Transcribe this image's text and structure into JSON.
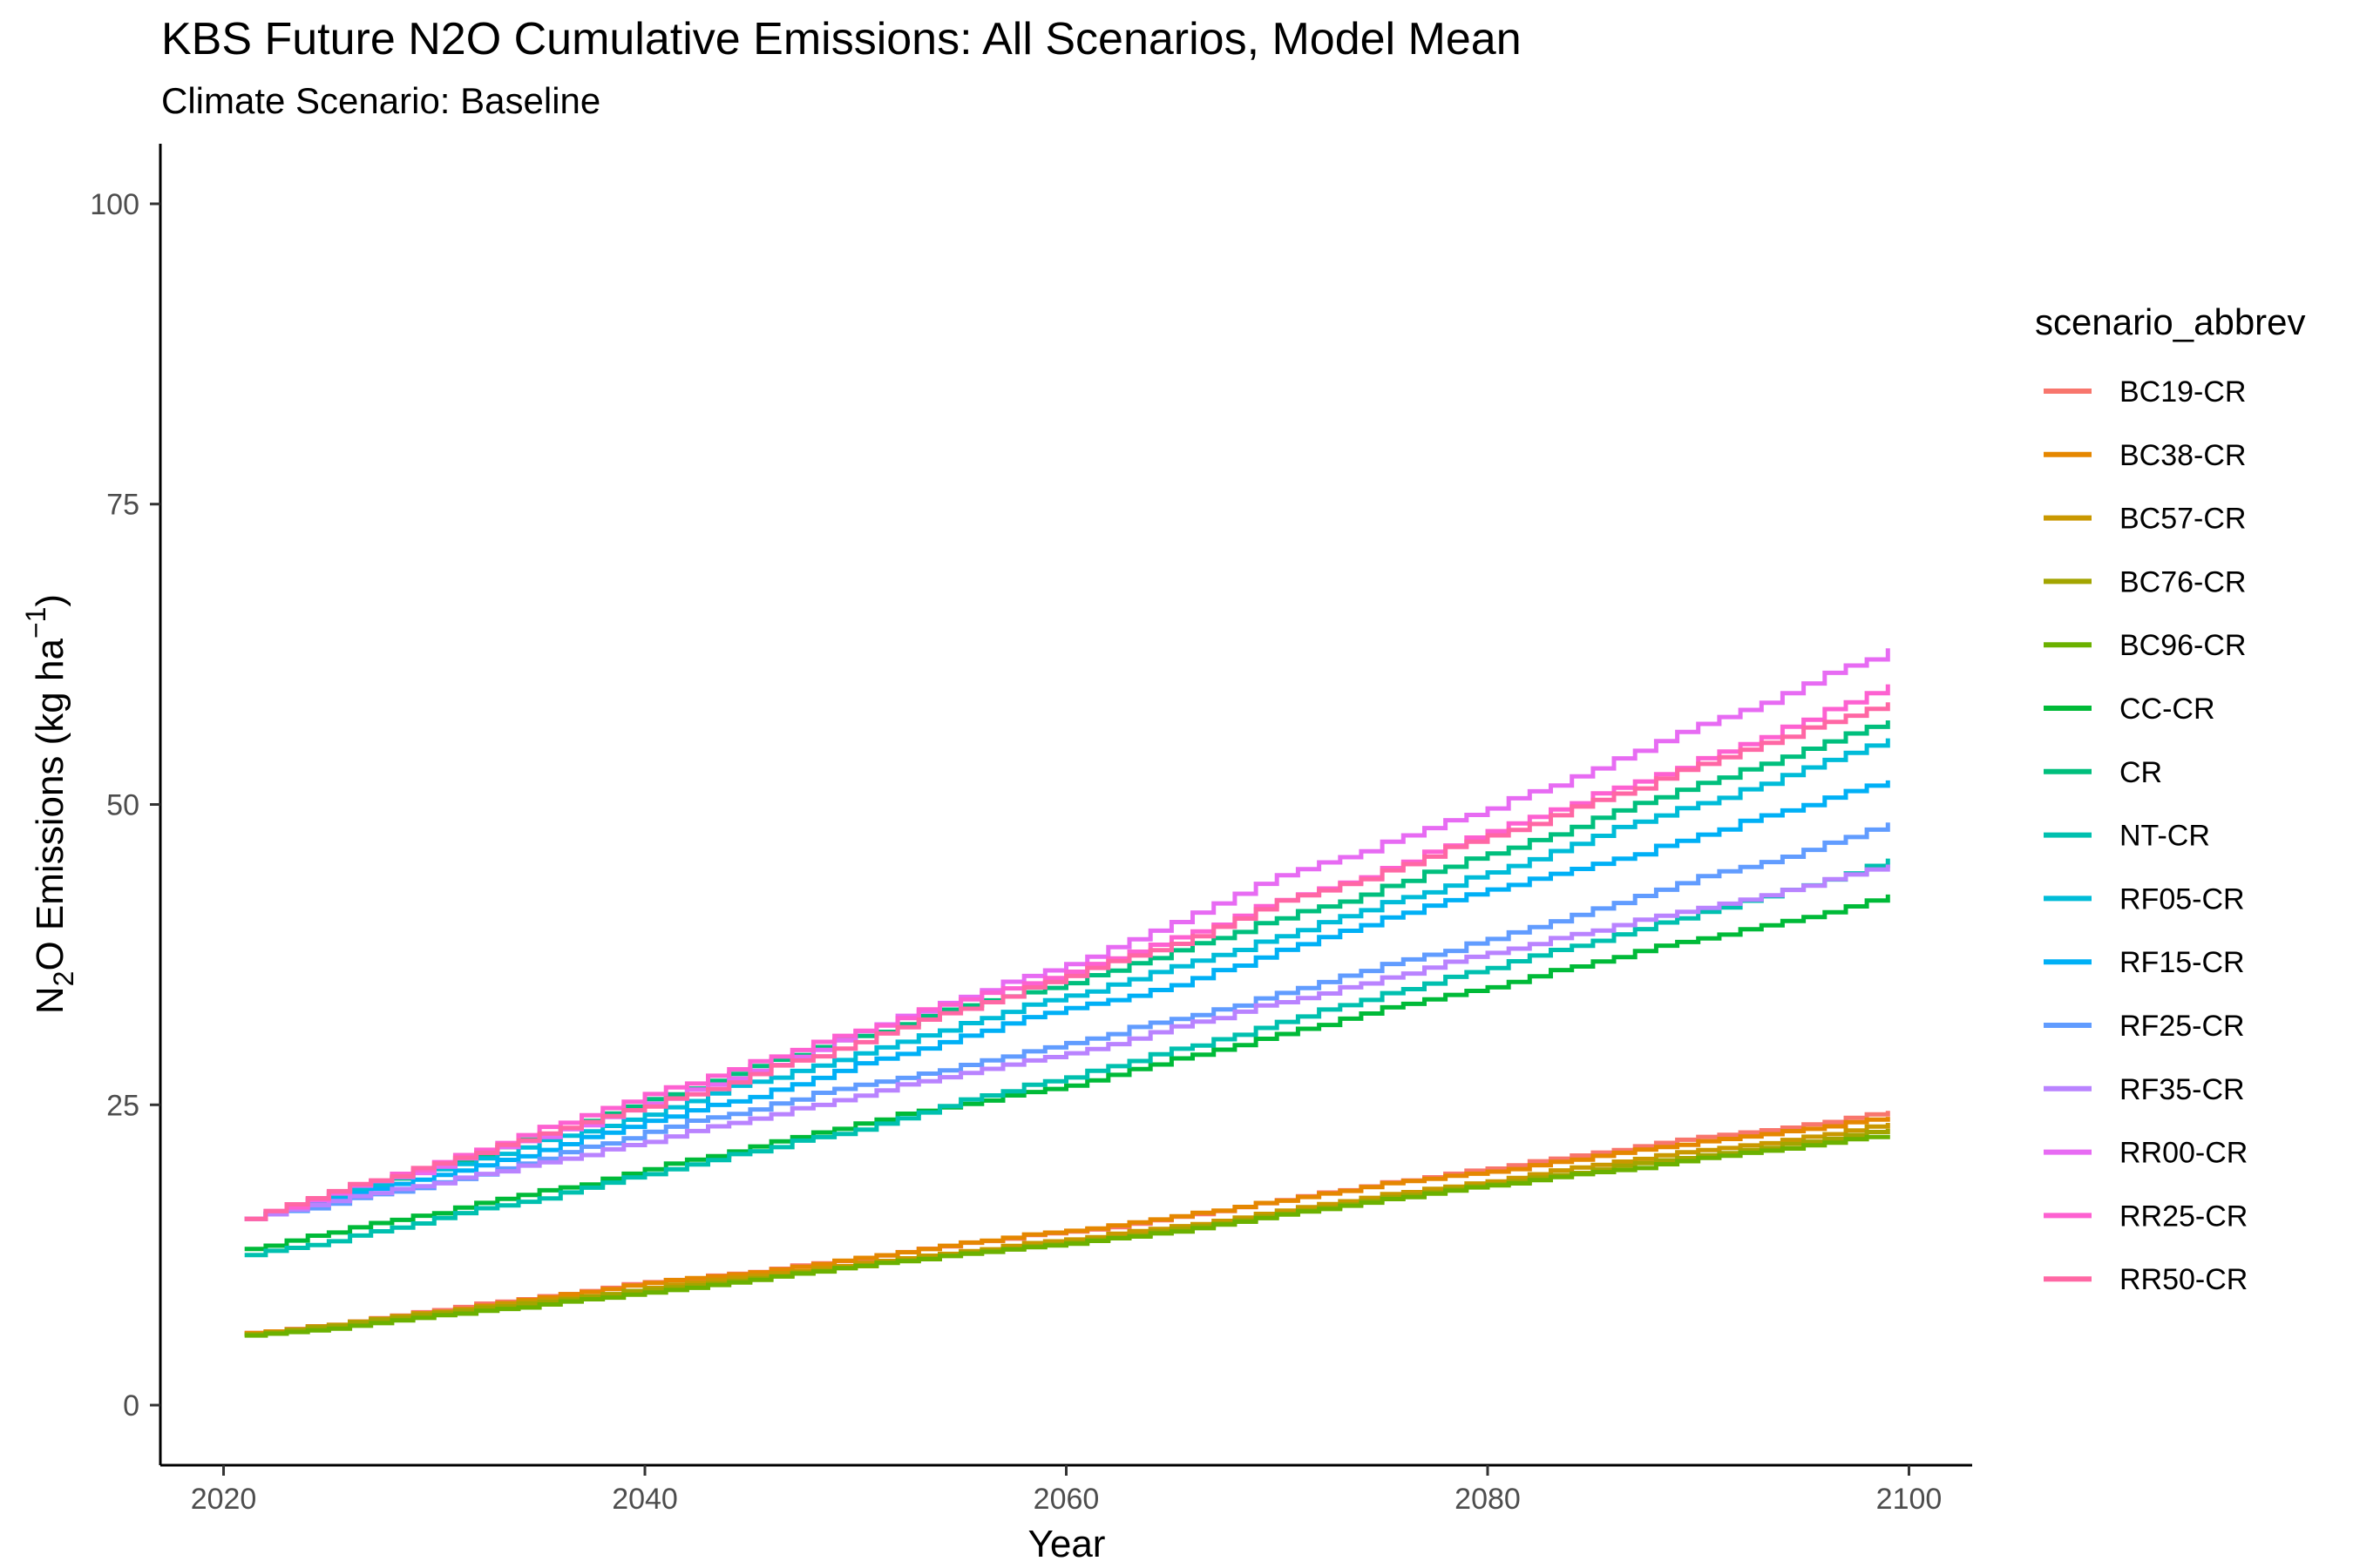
{
  "chart_data": {
    "type": "line",
    "title": "KBS  Future N2O Cumulative Emissions: All Scenarios, Model Mean",
    "subtitle": "Climate Scenario: Baseline",
    "xlabel": "Year",
    "ylabel": {
      "prefix": "N",
      "sub": "2",
      "middle": "O Emissions (kg ha",
      "sup": "−1",
      "suffix": ")"
    },
    "xlim": [
      2017,
      2103
    ],
    "ylim": [
      -5,
      105
    ],
    "x_ticks": [
      2020,
      2040,
      2060,
      2080,
      2100
    ],
    "y_ticks": [
      0,
      25,
      50,
      75,
      100
    ],
    "grid": false,
    "step": true,
    "legend": {
      "title": "scenario_abbrev",
      "position": "right"
    },
    "x_start": 2021,
    "x_end": 2099,
    "series": [
      {
        "name": "BC19-CR",
        "color": "#F8766D",
        "start": 6.0,
        "end": 24.5
      },
      {
        "name": "BC38-CR",
        "color": "#E58700",
        "start": 6.0,
        "end": 24.0
      },
      {
        "name": "BC57-CR",
        "color": "#C99800",
        "start": 5.9,
        "end": 23.5
      },
      {
        "name": "BC76-CR",
        "color": "#A3A500",
        "start": 5.9,
        "end": 23.0
      },
      {
        "name": "BC96-CR",
        "color": "#6BB100",
        "start": 5.8,
        "end": 22.5
      },
      {
        "name": "CC-CR",
        "color": "#00BA38",
        "start": 13.0,
        "end": 42.5
      },
      {
        "name": "CR",
        "color": "#00BF7D",
        "start": 15.5,
        "end": 57.0
      },
      {
        "name": "NT-CR",
        "color": "#00C0AF",
        "start": 12.5,
        "end": 45.5
      },
      {
        "name": "RF05-CR",
        "color": "#00BCD8",
        "start": 15.5,
        "end": 55.5
      },
      {
        "name": "RF15-CR",
        "color": "#00B0F6",
        "start": 15.5,
        "end": 52.0
      },
      {
        "name": "RF25-CR",
        "color": "#619CFF",
        "start": 15.5,
        "end": 48.5
      },
      {
        "name": "RF35-CR",
        "color": "#B983FF",
        "start": 15.5,
        "end": 45.0
      },
      {
        "name": "RR00-CR",
        "color": "#E76BF3",
        "start": 15.5,
        "end": 63.0
      },
      {
        "name": "RR25-CR",
        "color": "#FD61D1",
        "start": 15.5,
        "end": 60.0
      },
      {
        "name": "RR50-CR",
        "color": "#FF67A4",
        "start": 15.5,
        "end": 58.5
      }
    ]
  }
}
